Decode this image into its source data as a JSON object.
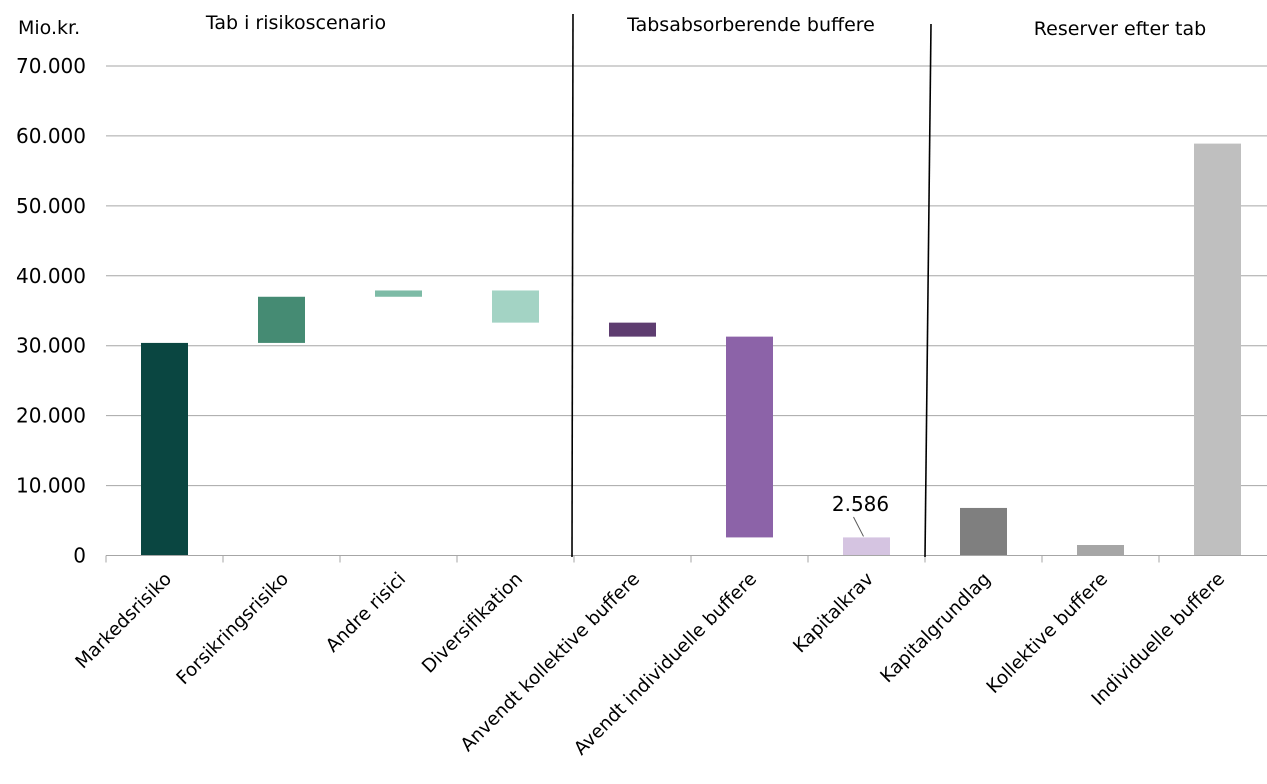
{
  "chart_data": {
    "type": "bar",
    "subtype": "waterfall",
    "ylabel": "Mio.kr.",
    "ylim": [
      0,
      70000
    ],
    "yticks": [
      0,
      10000,
      20000,
      30000,
      40000,
      50000,
      60000,
      70000
    ],
    "ytick_labels": [
      "0",
      "10.000",
      "20.000",
      "30.000",
      "40.000",
      "50.000",
      "60.000",
      "70.000"
    ],
    "grid": true,
    "legend": "none",
    "sections": [
      {
        "label": "Tab i risikoscenario"
      },
      {
        "label": "Tabsabsorberende buffere"
      },
      {
        "label": "Reserver efter tab"
      }
    ],
    "categories": [
      "Markedsrisiko",
      "Forsikringsrisiko",
      "Andre risici",
      "Diversifikation",
      "Anvendt kollektive buffere",
      "Avendt individuelle buffere",
      "Kapitalkrav",
      "Kapitalgrundlag",
      "Kollektive buffere",
      "Individuelle buffere"
    ],
    "bars": [
      {
        "category": "Markedsrisiko",
        "base": 0,
        "top": 30400,
        "color": "#0a4641"
      },
      {
        "category": "Forsikringsrisiko",
        "base": 30400,
        "top": 37000,
        "color": "#458b73"
      },
      {
        "category": "Andre risici",
        "base": 37000,
        "top": 37900,
        "color": "#7dbba6"
      },
      {
        "category": "Diversifikation",
        "base": 33300,
        "top": 37900,
        "color": "#a3d3c4"
      },
      {
        "category": "Anvendt kollektive buffere",
        "base": 31300,
        "top": 33300,
        "color": "#5e3d70"
      },
      {
        "category": "Avendt individuelle buffere",
        "base": 2586,
        "top": 31300,
        "color": "#8c63a8"
      },
      {
        "category": "Kapitalkrav",
        "base": 0,
        "top": 2586,
        "color": "#d5c4e1"
      },
      {
        "category": "Kapitalgrundlag",
        "base": 0,
        "top": 6800,
        "color": "#7f7f7f"
      },
      {
        "category": "Kollektive buffere",
        "base": 0,
        "top": 1500,
        "color": "#a6a6a6"
      },
      {
        "category": "Individuelle buffere",
        "base": 0,
        "top": 58900,
        "color": "#bfbfbf"
      }
    ],
    "annotations": [
      {
        "category": "Kapitalkrav",
        "text": "2.586"
      }
    ]
  }
}
